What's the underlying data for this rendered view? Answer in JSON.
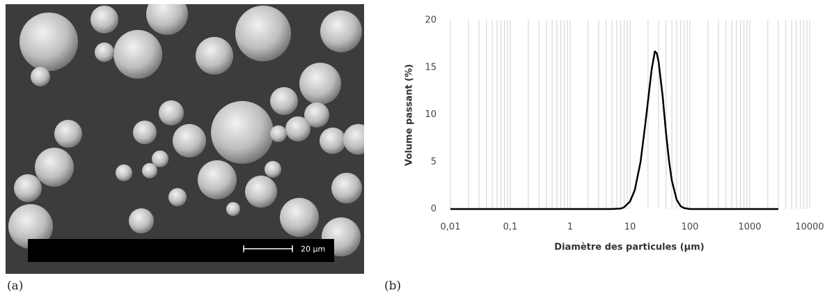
{
  "panel_a": {
    "label": "(a)",
    "scale_bar_label": "20 µm"
  },
  "panel_b": {
    "label": "(b)"
  },
  "chart_data": {
    "type": "line",
    "xlabel": "Diamètre des particules (µm)",
    "ylabel": "Volume passant (%)",
    "log_x": true,
    "grid": "x",
    "xlim": [
      0.01,
      10000
    ],
    "ylim": [
      0,
      20
    ],
    "xticks": [
      {
        "value": 0.01,
        "label": "0,01"
      },
      {
        "value": 0.1,
        "label": "0,1"
      },
      1,
      10,
      100,
      1000,
      10000
    ],
    "yticks": [
      0,
      5,
      10,
      15,
      20
    ],
    "x": [
      0.01,
      1,
      5,
      7,
      8,
      10,
      12,
      15,
      18,
      20,
      23,
      26,
      28,
      30,
      35,
      40,
      45,
      50,
      60,
      70,
      80,
      100,
      1000,
      3000
    ],
    "series": [
      {
        "name": "Volume passant",
        "color": "#000000",
        "values": [
          0,
          0,
          0,
          0.05,
          0.2,
          0.8,
          2.0,
          5.0,
          9.0,
          11.5,
          14.8,
          16.7,
          16.5,
          15.6,
          12,
          8,
          5,
          3,
          1,
          0.3,
          0.1,
          0,
          0,
          0
        ]
      }
    ]
  }
}
